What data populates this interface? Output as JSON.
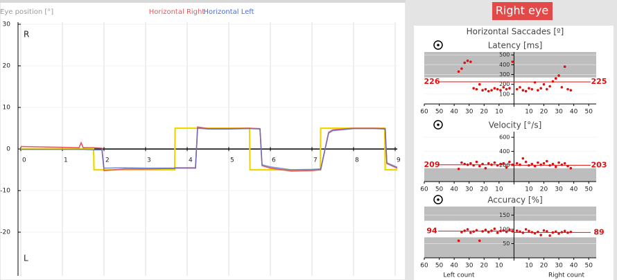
{
  "chart_data": [
    {
      "type": "line",
      "y_label": "Eye position [°]",
      "annotations": [
        "R",
        "L"
      ],
      "xlim": [
        0,
        9.05
      ],
      "xticks": [
        0,
        1,
        2,
        3,
        4,
        5,
        6,
        7,
        8,
        9
      ],
      "ylim": [
        -30.5,
        30.5
      ],
      "yticks": [
        30,
        20,
        10,
        0,
        -10,
        -20
      ],
      "grid": true,
      "x": [
        0,
        0.5,
        1.0,
        1.4,
        1.45,
        1.5,
        1.75,
        1.76,
        1.95,
        2.0,
        2.5,
        3.0,
        3.5,
        3.7,
        3.71,
        4.2,
        4.25,
        4.5,
        5.0,
        5.5,
        5.51,
        5.75,
        5.8,
        6.0,
        6.5,
        7.0,
        7.2,
        7.21,
        7.4,
        7.5,
        8.0,
        8.5,
        8.75,
        8.76,
        8.8,
        9.05
      ],
      "series": [
        {
          "color": "#f2d600",
          "values": [
            0,
            0,
            0,
            0,
            0,
            0,
            0,
            -5,
            -5,
            -5,
            -5,
            -5,
            -5,
            -5,
            5,
            5,
            5,
            5,
            5,
            5,
            -5,
            -5,
            -5,
            -5,
            -5,
            -5,
            -5,
            5,
            5,
            5,
            5,
            5,
            5,
            -5,
            -5,
            -5
          ]
        },
        {
          "name": "Horizontal Right",
          "color": "#e8575a",
          "values": [
            0.6,
            0.5,
            0.4,
            0.3,
            1.5,
            0.3,
            0.3,
            0.3,
            0.2,
            -5.2,
            -4.8,
            -4.8,
            -4.7,
            -4.7,
            -4.6,
            -4.6,
            5.3,
            4.9,
            4.9,
            5.0,
            5.0,
            4.9,
            -4.0,
            -4.6,
            -5.3,
            -5.2,
            -5.0,
            -5.0,
            4.0,
            4.6,
            5.0,
            5.0,
            4.9,
            4.9,
            -3.5,
            -4.6
          ]
        },
        {
          "name": "Horizontal Left",
          "color": "#4a6fd6",
          "values": [
            -0.1,
            -0.1,
            -0.1,
            -0.1,
            -0.1,
            -0.1,
            -0.2,
            -0.2,
            -0.2,
            -4.6,
            -4.5,
            -4.6,
            -4.6,
            -4.6,
            -4.5,
            -4.5,
            5.0,
            4.8,
            4.8,
            4.9,
            4.9,
            4.8,
            -3.8,
            -4.3,
            -5.0,
            -4.9,
            -4.8,
            -4.8,
            3.8,
            4.4,
            4.9,
            4.9,
            4.8,
            4.8,
            -3.3,
            -4.4
          ]
        }
      ]
    },
    {
      "type": "scatter",
      "title": "Latency [ms]",
      "color": "#e01010",
      "xlim": [
        -60,
        55
      ],
      "xticks": [
        {
          "value": -60,
          "label": "60"
        },
        {
          "value": -50,
          "label": "50"
        },
        {
          "value": -40,
          "label": "40"
        },
        {
          "value": -30,
          "label": "30"
        },
        {
          "value": -20,
          "label": "20"
        },
        {
          "value": -10,
          "label": "10"
        },
        10,
        20,
        30,
        40,
        50
      ],
      "ylim": [
        0,
        530
      ],
      "yticks": [
        100,
        200,
        300,
        400,
        500
      ],
      "shaded_ranges": [
        [
          270,
          530
        ]
      ],
      "means": [
        226,
        225
      ],
      "x": [
        -37,
        -35,
        -33,
        -31,
        -29,
        -27,
        -25,
        -23,
        -21,
        -19,
        -17,
        -15,
        -13,
        -11,
        -9,
        -7,
        -5,
        -3,
        -1,
        2,
        4,
        6,
        8,
        10,
        12,
        14,
        16,
        18,
        20,
        22,
        24,
        26,
        28,
        30,
        32,
        34,
        36,
        38
      ],
      "values": [
        330,
        360,
        420,
        440,
        430,
        160,
        150,
        200,
        140,
        150,
        130,
        140,
        160,
        150,
        140,
        170,
        150,
        160,
        430,
        150,
        170,
        140,
        130,
        160,
        150,
        220,
        140,
        160,
        200,
        150,
        180,
        230,
        260,
        290,
        170,
        380,
        150,
        140
      ]
    },
    {
      "type": "scatter",
      "title": "Velocity [°/s]",
      "color": "#e01010",
      "xlim": [
        -60,
        55
      ],
      "xticks": [
        {
          "value": -60,
          "label": "60"
        },
        {
          "value": -50,
          "label": "50"
        },
        {
          "value": -40,
          "label": "40"
        },
        {
          "value": -30,
          "label": "30"
        },
        {
          "value": -20,
          "label": "20"
        },
        {
          "value": -10,
          "label": "10"
        },
        10,
        20,
        30,
        40,
        50
      ],
      "ylim": [
        -30,
        680
      ],
      "yticks": [
        200,
        400,
        600
      ],
      "shaded_ranges": [
        [
          -30,
          160
        ]
      ],
      "means": [
        209,
        203
      ],
      "x": [
        -37,
        -35,
        -33,
        -31,
        -29,
        -27,
        -25,
        -23,
        -21,
        -19,
        -17,
        -15,
        -13,
        -11,
        -9,
        -7,
        -5,
        -3,
        -1,
        2,
        4,
        6,
        8,
        10,
        12,
        14,
        16,
        18,
        20,
        22,
        24,
        26,
        28,
        30,
        32,
        34,
        36,
        38
      ],
      "values": [
        150,
        240,
        220,
        210,
        230,
        200,
        250,
        190,
        220,
        160,
        230,
        210,
        240,
        200,
        220,
        230,
        170,
        250,
        210,
        230,
        210,
        300,
        250,
        200,
        220,
        190,
        240,
        210,
        230,
        260,
        200,
        220,
        180,
        240,
        210,
        230,
        190,
        160
      ]
    },
    {
      "type": "scatter",
      "title": "Accuracy [%]",
      "color": "#e01010",
      "xlim": [
        -60,
        55
      ],
      "xticks": [
        {
          "value": -60,
          "label": "60"
        },
        {
          "value": -50,
          "label": "50"
        },
        {
          "value": -40,
          "label": "40"
        },
        {
          "value": -30,
          "label": "30"
        },
        {
          "value": -20,
          "label": "20"
        },
        {
          "value": -10,
          "label": "10"
        },
        10,
        20,
        30,
        40,
        50
      ],
      "ylim": [
        0,
        180
      ],
      "yticks": [
        50,
        100,
        150
      ],
      "shaded_ranges": [
        [
          130,
          180
        ],
        [
          0,
          72
        ]
      ],
      "means": [
        94,
        89
      ],
      "x": [
        -37,
        -35,
        -33,
        -31,
        -29,
        -27,
        -25,
        -23,
        -21,
        -19,
        -17,
        -15,
        -13,
        -11,
        -9,
        -7,
        -5,
        -3,
        -1,
        2,
        4,
        6,
        8,
        10,
        12,
        14,
        16,
        18,
        20,
        22,
        24,
        26,
        28,
        30,
        32,
        34,
        36,
        38
      ],
      "values": [
        60,
        90,
        95,
        100,
        88,
        92,
        97,
        60,
        93,
        98,
        90,
        95,
        102,
        88,
        94,
        96,
        91,
        99,
        93,
        95,
        92,
        88,
        100,
        94,
        90,
        86,
        91,
        80,
        96,
        93,
        78,
        89,
        92,
        85,
        90,
        94,
        88,
        91
      ]
    }
  ],
  "side_panel": {
    "title": "Right eye",
    "subtitle": "Horizontal Saccades [º]",
    "left_label": "Left count",
    "right_label": "Right count"
  }
}
